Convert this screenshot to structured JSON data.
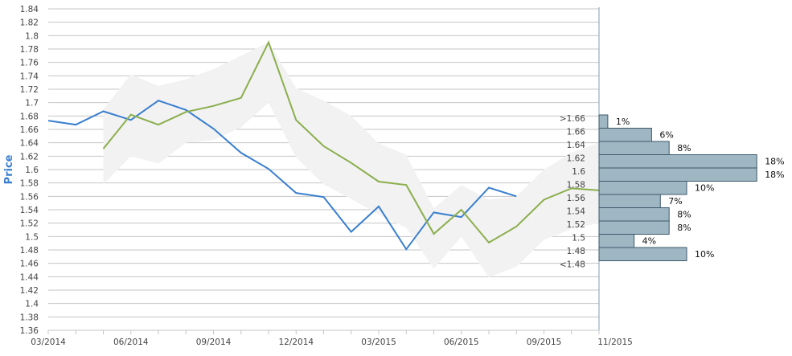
{
  "chart_data": {
    "type": "line",
    "ylabel": "Price",
    "ylim": [
      1.36,
      1.84
    ],
    "yticks": [
      "1.84",
      "1.82",
      "1.8",
      "1.78",
      "1.76",
      "1.74",
      "1.72",
      "1.7",
      "1.68",
      "1.66",
      "1.64",
      "1.62",
      "1.6",
      "1.58",
      "1.56",
      "1.54",
      "1.52",
      "1.5",
      "1.48",
      "1.46",
      "1.44",
      "1.42",
      "1.4",
      "1.38",
      "1.36"
    ],
    "xticks": [
      {
        "label": "03/2014",
        "m": 0
      },
      {
        "label": "06/2014",
        "m": 3
      },
      {
        "label": "09/2014",
        "m": 6
      },
      {
        "label": "12/2014",
        "m": 9
      },
      {
        "label": "03/2015",
        "m": 12
      },
      {
        "label": "06/2015",
        "m": 15
      },
      {
        "label": "09/2015",
        "m": 18
      },
      {
        "label": "11/2015",
        "m": 20
      }
    ],
    "grid": true,
    "colors": {
      "blue": "#3a7fcf",
      "green": "#8aae4c",
      "band": "#f2f2f2",
      "hist": "#9fb6c3",
      "hist_stroke": "#3d5a6c",
      "axis": "#7f9fb3",
      "ylabel": "#3a7fcf"
    },
    "series": [
      {
        "color": "#3a7fcf",
        "x": [
          "03/2014",
          "04/2014",
          "05/2014",
          "06/2014",
          "07/2014",
          "08/2014",
          "09/2014",
          "10/2014",
          "11/2014",
          "12/2014",
          "01/2015",
          "02/2015",
          "03/2015",
          "04/2015",
          "05/2015",
          "06/2015",
          "07/2015",
          "08/2015"
        ],
        "values": [
          1.673,
          1.667,
          1.687,
          1.674,
          1.703,
          1.689,
          1.661,
          1.625,
          1.601,
          1.565,
          1.559,
          1.507,
          1.545,
          1.481,
          1.536,
          1.529,
          1.573,
          1.56
        ]
      },
      {
        "color": "#8aae4c",
        "x": [
          "05/2014",
          "06/2014",
          "07/2014",
          "08/2014",
          "09/2014",
          "10/2014",
          "11/2014",
          "12/2014",
          "01/2015",
          "02/2015",
          "03/2015",
          "04/2015",
          "05/2015",
          "06/2015",
          "07/2015",
          "08/2015",
          "09/2015",
          "10/2015",
          "11/2015"
        ],
        "values": [
          1.631,
          1.682,
          1.667,
          1.686,
          1.695,
          1.707,
          1.79,
          1.674,
          1.635,
          1.61,
          1.582,
          1.577,
          1.504,
          1.54,
          1.491,
          1.515,
          1.555,
          1.572,
          1.569
        ]
      }
    ],
    "band": {
      "x": [
        "05/2014",
        "06/2014",
        "07/2014",
        "08/2014",
        "09/2014",
        "10/2014",
        "11/2014",
        "12/2014",
        "01/2015",
        "02/2015",
        "03/2015",
        "04/2015",
        "05/2015",
        "06/2015",
        "07/2015",
        "08/2015",
        "09/2015",
        "10/2015",
        "11/2015"
      ],
      "upper": [
        1.69,
        1.742,
        1.725,
        1.735,
        1.75,
        1.77,
        1.79,
        1.722,
        1.703,
        1.68,
        1.639,
        1.622,
        1.542,
        1.577,
        1.555,
        1.56,
        1.6,
        1.625,
        1.64
      ],
      "lower": [
        1.578,
        1.62,
        1.609,
        1.64,
        1.644,
        1.663,
        1.7,
        1.618,
        1.578,
        1.556,
        1.533,
        1.513,
        1.452,
        1.5,
        1.439,
        1.455,
        1.495,
        1.511,
        1.52
      ]
    },
    "histogram": [
      {
        "label": ">1.66",
        "pct": 1,
        "text": "1%"
      },
      {
        "label": "1.66",
        "pct": 6,
        "text": "6%"
      },
      {
        "label": "1.64",
        "pct": 8,
        "text": "8%"
      },
      {
        "label": "1.62",
        "pct": 18,
        "text": "18%"
      },
      {
        "label": "1.6",
        "pct": 18,
        "text": "18%"
      },
      {
        "label": "1.58",
        "pct": 10,
        "text": "10%"
      },
      {
        "label": "1.56",
        "pct": 7,
        "text": "7%"
      },
      {
        "label": "1.54",
        "pct": 8,
        "text": "8%"
      },
      {
        "label": "1.52",
        "pct": 8,
        "text": "8%"
      },
      {
        "label": "1.5",
        "pct": 4,
        "text": "4%"
      },
      {
        "label": "1.48",
        "pct": 10,
        "text": "10%"
      },
      {
        "label": "<1.48",
        "pct": null,
        "text": ""
      }
    ]
  }
}
